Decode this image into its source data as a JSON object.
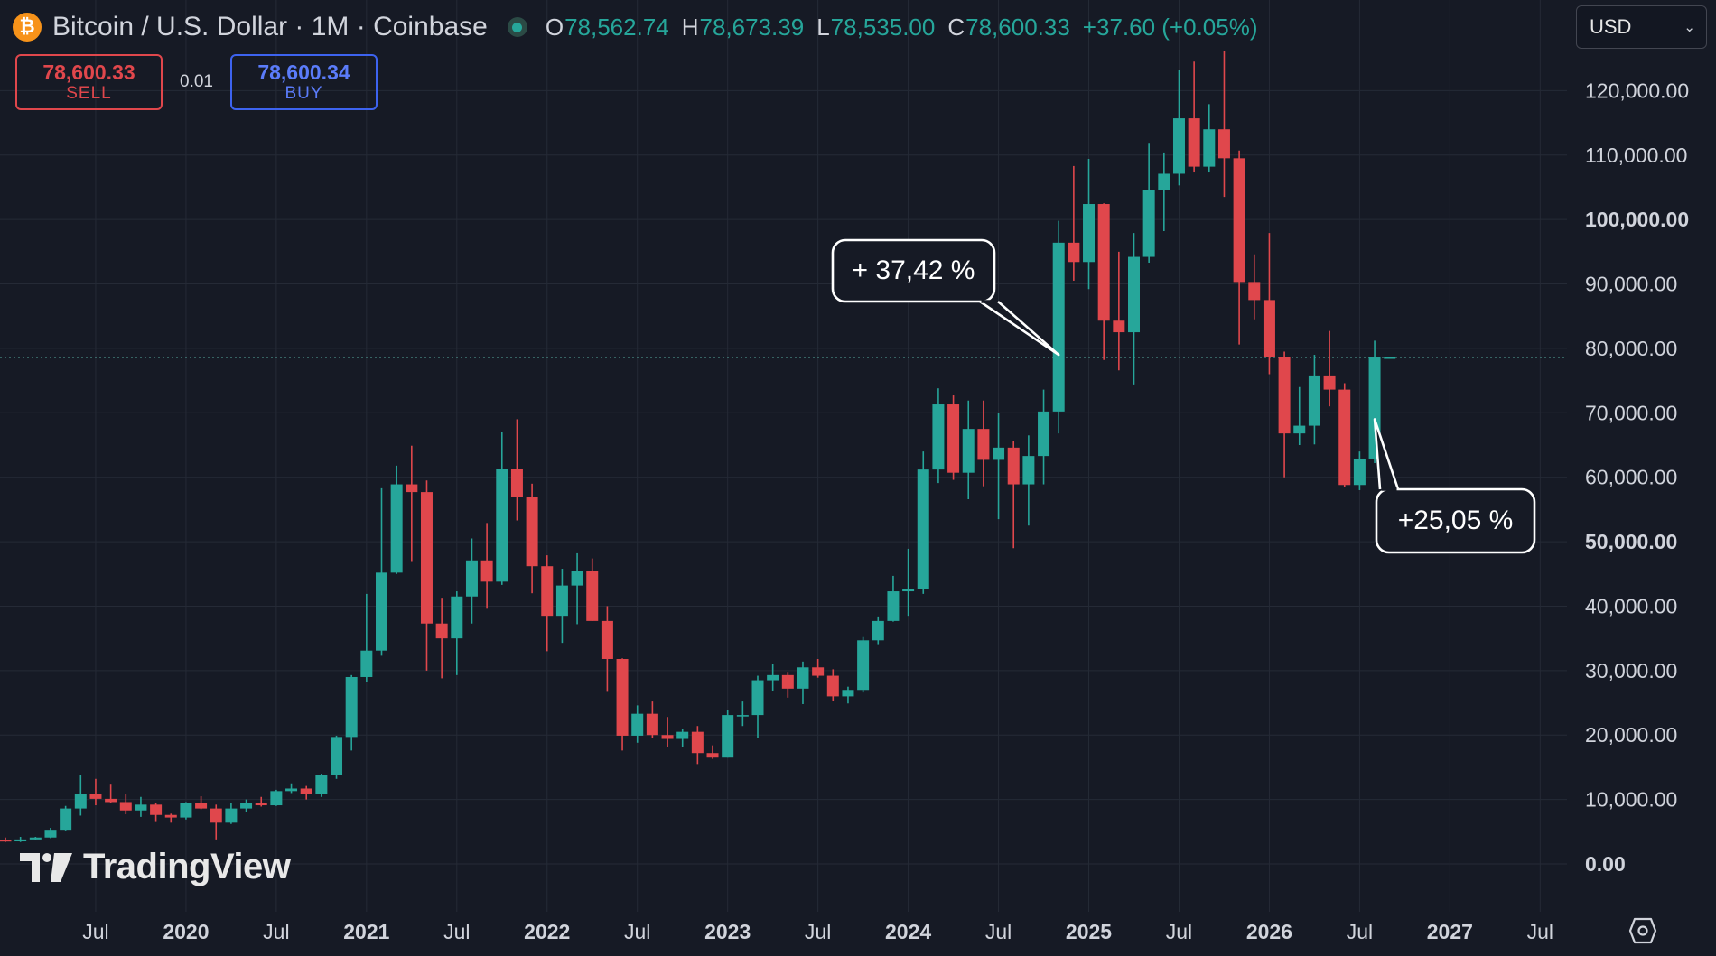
{
  "header": {
    "coin_icon_glyph": "₿",
    "symbol_title": "Bitcoin / U.S. Dollar · 1M · Coinbase",
    "ohlc": {
      "o_label": "O",
      "o_value": "78,562.74",
      "h_label": "H",
      "h_value": "78,673.39",
      "l_label": "L",
      "l_value": "78,535.00",
      "c_label": "C",
      "c_value": "78,600.33",
      "change": "+37.60 (+0.05%)"
    }
  },
  "trade_panel": {
    "sell_price": "78,600.33",
    "sell_label": "SELL",
    "spread": "0.01",
    "buy_price": "78,600.34",
    "buy_label": "BUY"
  },
  "currency_select": {
    "value": "USD",
    "icon": "chevron-down-icon"
  },
  "branding": {
    "logo_text": "TradingView"
  },
  "colors": {
    "background": "#161a25",
    "up": "#26a69a",
    "down": "#e0474c",
    "grid": "#252a36",
    "axis_text": "#d1d4dc",
    "last_price_line": "#4a8f88"
  },
  "chart_data": {
    "type": "candlestick",
    "title": "Bitcoin / U.S. Dollar · 1M · Coinbase",
    "last_price": 78600,
    "ylim": [
      0,
      130000
    ],
    "y_ticks": [
      {
        "value": 0,
        "label": "0.00",
        "bold": true
      },
      {
        "value": 10000,
        "label": "10,000.00"
      },
      {
        "value": 20000,
        "label": "20,000.00"
      },
      {
        "value": 30000,
        "label": "30,000.00"
      },
      {
        "value": 40000,
        "label": "40,000.00"
      },
      {
        "value": 50000,
        "label": "50,000.00",
        "bold": true
      },
      {
        "value": 60000,
        "label": "60,000.00"
      },
      {
        "value": 70000,
        "label": "70,000.00"
      },
      {
        "value": 80000,
        "label": "80,000.00"
      },
      {
        "value": 90000,
        "label": "90,000.00"
      },
      {
        "value": 100000,
        "label": "100,000.00",
        "bold": true
      },
      {
        "value": 110000,
        "label": "110,000.00"
      },
      {
        "value": 120000,
        "label": "120,000.00"
      }
    ],
    "x_ticks": [
      {
        "month": "2019-07",
        "label": "Jul"
      },
      {
        "month": "2020-01",
        "label": "2020",
        "bold": true
      },
      {
        "month": "2020-07",
        "label": "Jul"
      },
      {
        "month": "2021-01",
        "label": "2021",
        "bold": true
      },
      {
        "month": "2021-07",
        "label": "Jul"
      },
      {
        "month": "2022-01",
        "label": "2022",
        "bold": true
      },
      {
        "month": "2022-07",
        "label": "Jul"
      },
      {
        "month": "2023-01",
        "label": "2023",
        "bold": true
      },
      {
        "month": "2023-07",
        "label": "Jul"
      },
      {
        "month": "2024-01",
        "label": "2024",
        "bold": true
      },
      {
        "month": "2024-07",
        "label": "Jul"
      },
      {
        "month": "2025-01",
        "label": "2025",
        "bold": true
      },
      {
        "month": "2025-07",
        "label": "Jul"
      },
      {
        "month": "2026-01",
        "label": "2026",
        "bold": true
      },
      {
        "month": "2026-07",
        "label": "Jul"
      },
      {
        "month": "2027-01",
        "label": "2027",
        "bold": true
      },
      {
        "month": "2027-07",
        "label": "Jul"
      }
    ],
    "candles": [
      {
        "month": "2019-01",
        "o": 3700,
        "h": 4100,
        "l": 3400,
        "c": 3500
      },
      {
        "month": "2019-02",
        "o": 3500,
        "h": 4200,
        "l": 3400,
        "c": 3800
      },
      {
        "month": "2019-03",
        "o": 3800,
        "h": 4200,
        "l": 3700,
        "c": 4100
      },
      {
        "month": "2019-04",
        "o": 4100,
        "h": 5600,
        "l": 4000,
        "c": 5300
      },
      {
        "month": "2019-05",
        "o": 5300,
        "h": 9000,
        "l": 5200,
        "c": 8600
      },
      {
        "month": "2019-06",
        "o": 8600,
        "h": 13800,
        "l": 7500,
        "c": 10800
      },
      {
        "month": "2019-07",
        "o": 10800,
        "h": 13200,
        "l": 9100,
        "c": 10100
      },
      {
        "month": "2019-08",
        "o": 10100,
        "h": 12300,
        "l": 9400,
        "c": 9600
      },
      {
        "month": "2019-09",
        "o": 9600,
        "h": 10900,
        "l": 7700,
        "c": 8300
      },
      {
        "month": "2019-10",
        "o": 8300,
        "h": 10400,
        "l": 7300,
        "c": 9200
      },
      {
        "month": "2019-11",
        "o": 9200,
        "h": 9500,
        "l": 6500,
        "c": 7600
      },
      {
        "month": "2019-12",
        "o": 7600,
        "h": 7800,
        "l": 6400,
        "c": 7200
      },
      {
        "month": "2020-01",
        "o": 7200,
        "h": 9600,
        "l": 6900,
        "c": 9400
      },
      {
        "month": "2020-02",
        "o": 9400,
        "h": 10500,
        "l": 8500,
        "c": 8600
      },
      {
        "month": "2020-03",
        "o": 8600,
        "h": 9200,
        "l": 3800,
        "c": 6400
      },
      {
        "month": "2020-04",
        "o": 6400,
        "h": 9500,
        "l": 6200,
        "c": 8600
      },
      {
        "month": "2020-05",
        "o": 8600,
        "h": 10000,
        "l": 8100,
        "c": 9500
      },
      {
        "month": "2020-06",
        "o": 9500,
        "h": 10400,
        "l": 8900,
        "c": 9100
      },
      {
        "month": "2020-07",
        "o": 9100,
        "h": 11500,
        "l": 9000,
        "c": 11300
      },
      {
        "month": "2020-08",
        "o": 11300,
        "h": 12500,
        "l": 11000,
        "c": 11700
      },
      {
        "month": "2020-09",
        "o": 11700,
        "h": 12100,
        "l": 10000,
        "c": 10800
      },
      {
        "month": "2020-10",
        "o": 10800,
        "h": 14000,
        "l": 10400,
        "c": 13800
      },
      {
        "month": "2020-11",
        "o": 13800,
        "h": 19900,
        "l": 13200,
        "c": 19700
      },
      {
        "month": "2020-12",
        "o": 19700,
        "h": 29300,
        "l": 17600,
        "c": 29000
      },
      {
        "month": "2021-01",
        "o": 29000,
        "h": 41900,
        "l": 28200,
        "c": 33100
      },
      {
        "month": "2021-02",
        "o": 33100,
        "h": 58300,
        "l": 32300,
        "c": 45200
      },
      {
        "month": "2021-03",
        "o": 45200,
        "h": 61800,
        "l": 45000,
        "c": 58900
      },
      {
        "month": "2021-04",
        "o": 58900,
        "h": 64900,
        "l": 47000,
        "c": 57700
      },
      {
        "month": "2021-05",
        "o": 57700,
        "h": 59500,
        "l": 30000,
        "c": 37300
      },
      {
        "month": "2021-06",
        "o": 37300,
        "h": 41300,
        "l": 28800,
        "c": 35000
      },
      {
        "month": "2021-07",
        "o": 35000,
        "h": 42300,
        "l": 29300,
        "c": 41500
      },
      {
        "month": "2021-08",
        "o": 41500,
        "h": 50500,
        "l": 37300,
        "c": 47100
      },
      {
        "month": "2021-09",
        "o": 47100,
        "h": 52900,
        "l": 39600,
        "c": 43800
      },
      {
        "month": "2021-10",
        "o": 43800,
        "h": 67000,
        "l": 43300,
        "c": 61300
      },
      {
        "month": "2021-11",
        "o": 61300,
        "h": 69000,
        "l": 53300,
        "c": 57000
      },
      {
        "month": "2021-12",
        "o": 57000,
        "h": 59000,
        "l": 42000,
        "c": 46200
      },
      {
        "month": "2022-01",
        "o": 46200,
        "h": 47900,
        "l": 33000,
        "c": 38500
      },
      {
        "month": "2022-02",
        "o": 38500,
        "h": 45800,
        "l": 34300,
        "c": 43200
      },
      {
        "month": "2022-03",
        "o": 43200,
        "h": 48200,
        "l": 37200,
        "c": 45500
      },
      {
        "month": "2022-04",
        "o": 45500,
        "h": 47400,
        "l": 37700,
        "c": 37700
      },
      {
        "month": "2022-05",
        "o": 37700,
        "h": 40000,
        "l": 26700,
        "c": 31800
      },
      {
        "month": "2022-06",
        "o": 31800,
        "h": 31900,
        "l": 17600,
        "c": 19900
      },
      {
        "month": "2022-07",
        "o": 19900,
        "h": 24600,
        "l": 18800,
        "c": 23300
      },
      {
        "month": "2022-08",
        "o": 23300,
        "h": 25200,
        "l": 19600,
        "c": 20000
      },
      {
        "month": "2022-09",
        "o": 20000,
        "h": 22800,
        "l": 18200,
        "c": 19400
      },
      {
        "month": "2022-10",
        "o": 19400,
        "h": 21000,
        "l": 18200,
        "c": 20500
      },
      {
        "month": "2022-11",
        "o": 20500,
        "h": 21400,
        "l": 15500,
        "c": 17200
      },
      {
        "month": "2022-12",
        "o": 17200,
        "h": 18400,
        "l": 16300,
        "c": 16500
      },
      {
        "month": "2023-01",
        "o": 16500,
        "h": 23900,
        "l": 16500,
        "c": 23100
      },
      {
        "month": "2023-02",
        "o": 23100,
        "h": 25200,
        "l": 21400,
        "c": 23100
      },
      {
        "month": "2023-03",
        "o": 23100,
        "h": 29200,
        "l": 19500,
        "c": 28500
      },
      {
        "month": "2023-04",
        "o": 28500,
        "h": 31000,
        "l": 26900,
        "c": 29300
      },
      {
        "month": "2023-05",
        "o": 29300,
        "h": 29800,
        "l": 25800,
        "c": 27200
      },
      {
        "month": "2023-06",
        "o": 27200,
        "h": 31400,
        "l": 24800,
        "c": 30500
      },
      {
        "month": "2023-07",
        "o": 30500,
        "h": 31800,
        "l": 28900,
        "c": 29200
      },
      {
        "month": "2023-08",
        "o": 29200,
        "h": 30200,
        "l": 25300,
        "c": 26000
      },
      {
        "month": "2023-09",
        "o": 26000,
        "h": 27500,
        "l": 24900,
        "c": 27000
      },
      {
        "month": "2023-10",
        "o": 27000,
        "h": 35200,
        "l": 26600,
        "c": 34700
      },
      {
        "month": "2023-11",
        "o": 34700,
        "h": 38400,
        "l": 34100,
        "c": 37700
      },
      {
        "month": "2023-12",
        "o": 37700,
        "h": 44700,
        "l": 37600,
        "c": 42300
      },
      {
        "month": "2024-01",
        "o": 42300,
        "h": 48900,
        "l": 38500,
        "c": 42600
      },
      {
        "month": "2024-02",
        "o": 42600,
        "h": 64000,
        "l": 41900,
        "c": 61200
      },
      {
        "month": "2024-03",
        "o": 61200,
        "h": 73800,
        "l": 59100,
        "c": 71300
      },
      {
        "month": "2024-04",
        "o": 71300,
        "h": 72700,
        "l": 59600,
        "c": 60700
      },
      {
        "month": "2024-05",
        "o": 60700,
        "h": 71900,
        "l": 56600,
        "c": 67500
      },
      {
        "month": "2024-06",
        "o": 67500,
        "h": 71900,
        "l": 58600,
        "c": 62700
      },
      {
        "month": "2024-07",
        "o": 62700,
        "h": 70000,
        "l": 53500,
        "c": 64600
      },
      {
        "month": "2024-08",
        "o": 64600,
        "h": 65600,
        "l": 49000,
        "c": 58900
      },
      {
        "month": "2024-09",
        "o": 58900,
        "h": 66500,
        "l": 52500,
        "c": 63300
      },
      {
        "month": "2024-10",
        "o": 63300,
        "h": 73600,
        "l": 58900,
        "c": 70200
      },
      {
        "month": "2024-11",
        "o": 70200,
        "h": 99800,
        "l": 66800,
        "c": 96400
      },
      {
        "month": "2024-12",
        "o": 96400,
        "h": 108300,
        "l": 90500,
        "c": 93400
      },
      {
        "month": "2025-01",
        "o": 93400,
        "h": 109400,
        "l": 89200,
        "c": 102400
      },
      {
        "month": "2025-02",
        "o": 102400,
        "h": 102500,
        "l": 78200,
        "c": 84300
      },
      {
        "month": "2025-03",
        "o": 84300,
        "h": 95000,
        "l": 76600,
        "c": 82500
      },
      {
        "month": "2025-04",
        "o": 82500,
        "h": 97900,
        "l": 74400,
        "c": 94200
      },
      {
        "month": "2025-05",
        "o": 94200,
        "h": 111900,
        "l": 93300,
        "c": 104600
      },
      {
        "month": "2025-06",
        "o": 104600,
        "h": 110400,
        "l": 98200,
        "c": 107100
      },
      {
        "month": "2025-07",
        "o": 107100,
        "h": 123200,
        "l": 105300,
        "c": 115700
      },
      {
        "month": "2025-08",
        "o": 115700,
        "h": 124500,
        "l": 107300,
        "c": 108200
      },
      {
        "month": "2025-09",
        "o": 108200,
        "h": 117900,
        "l": 107300,
        "c": 114000
      },
      {
        "month": "2025-10",
        "o": 114000,
        "h": 126200,
        "l": 103500,
        "c": 109500
      },
      {
        "month": "2025-11",
        "o": 109500,
        "h": 110700,
        "l": 80600,
        "c": 90300
      },
      {
        "month": "2025-12",
        "o": 90300,
        "h": 94600,
        "l": 84500,
        "c": 87500
      },
      {
        "month": "2026-01",
        "o": 87500,
        "h": 97900,
        "l": 76000,
        "c": 78600
      },
      {
        "month": "2026-02",
        "o": 78600,
        "h": 79500,
        "l": 60000,
        "c": 66800
      },
      {
        "month": "2026-03",
        "o": 66800,
        "h": 74000,
        "l": 65000,
        "c": 68000
      },
      {
        "month": "2026-04",
        "o": 68000,
        "h": 79000,
        "l": 65100,
        "c": 75800
      },
      {
        "month": "2026-05",
        "o": 75800,
        "h": 82700,
        "l": 71000,
        "c": 73600
      },
      {
        "month": "2026-06",
        "o": 73600,
        "h": 74600,
        "l": 58500,
        "c": 58800
      },
      {
        "month": "2026-07",
        "o": 58800,
        "h": 64000,
        "l": 58000,
        "c": 62900
      },
      {
        "month": "2026-08",
        "o": 62900,
        "h": 81200,
        "l": 62200,
        "c": 78600
      },
      {
        "month": "2026-09",
        "o": 78560,
        "h": 78670,
        "l": 78535,
        "c": 78600
      }
    ],
    "annotations": [
      {
        "text": "+ 37,42 %",
        "pointer_month": "2024-11",
        "pointer_value": 79000
      },
      {
        "text": "+25,05 %",
        "pointer_month": "2026-08",
        "pointer_value": 69000
      }
    ]
  }
}
